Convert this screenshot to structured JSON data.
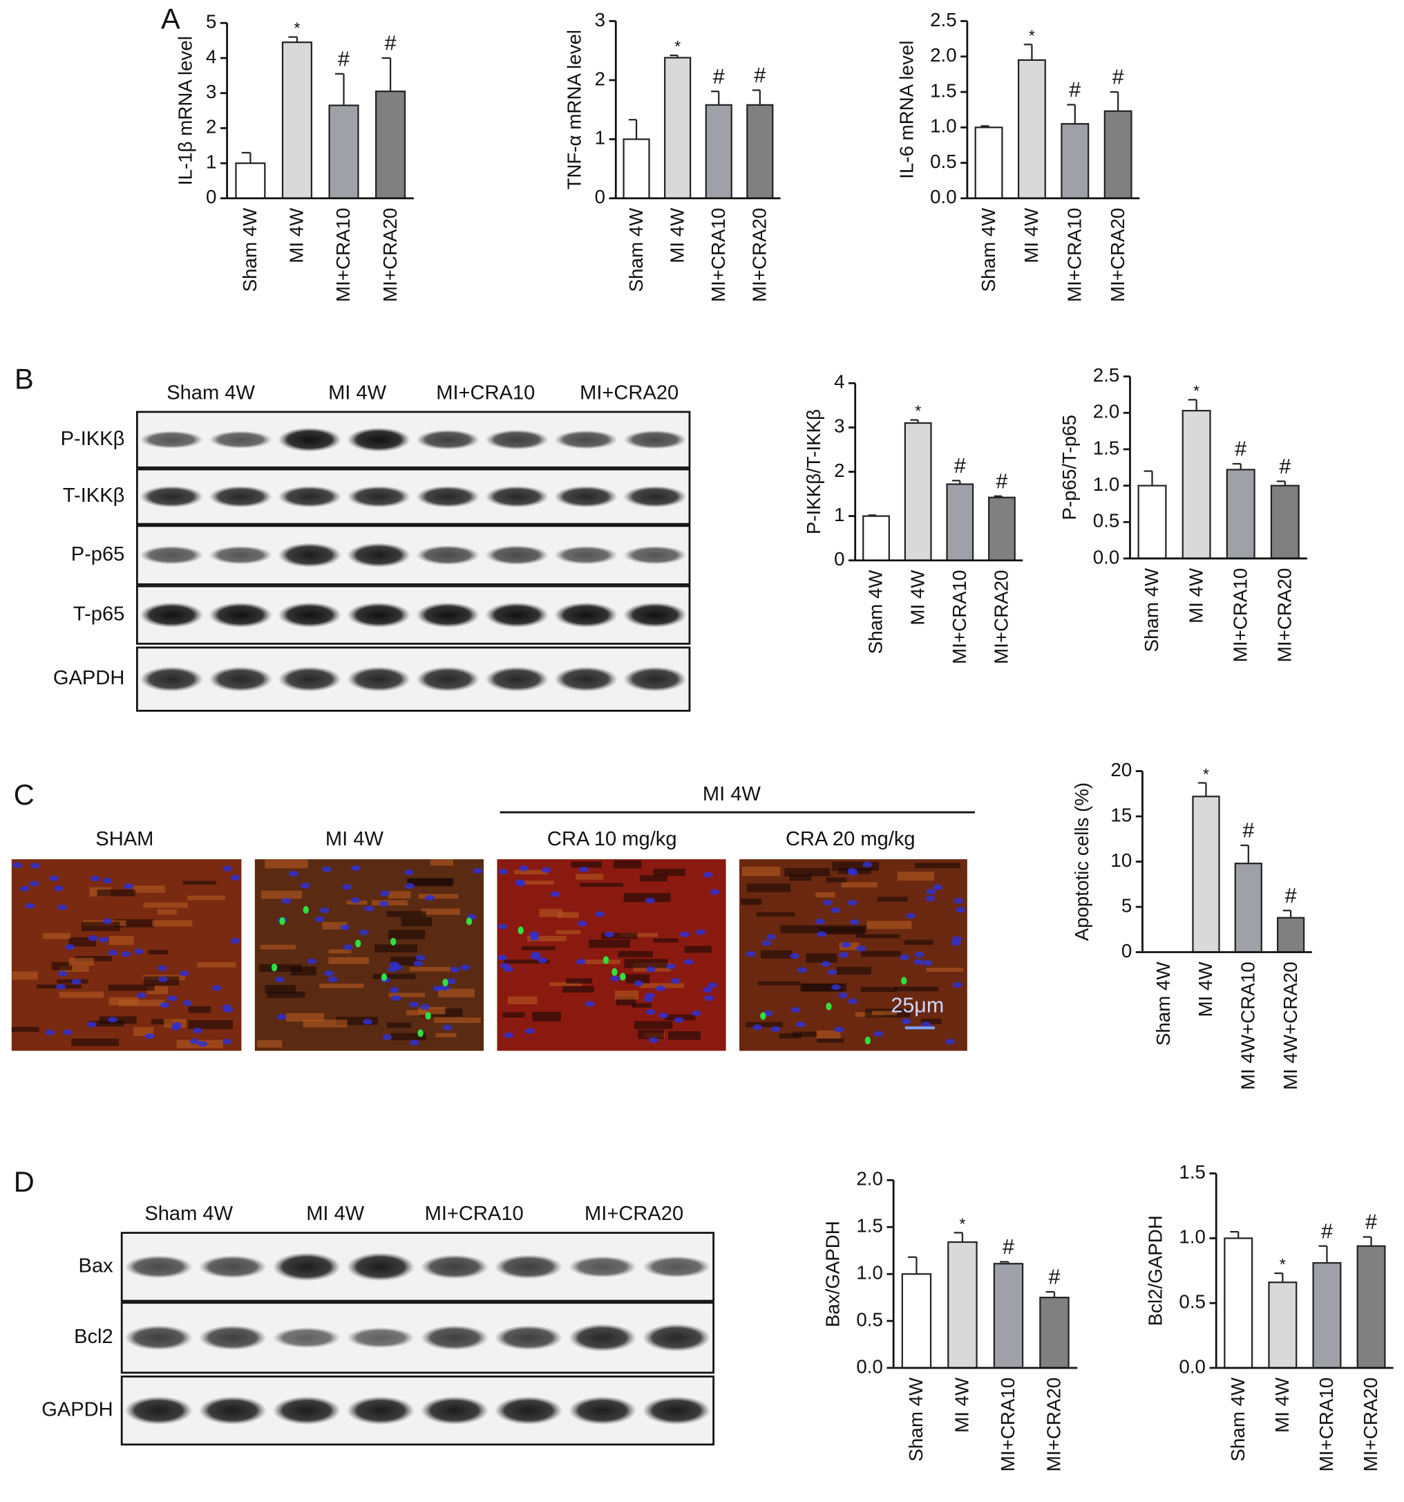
{
  "panels": [
    "A",
    "B",
    "C",
    "D"
  ],
  "blot_b": {
    "groups": [
      "Sham 4W",
      "MI 4W",
      "MI+CRA10",
      "MI+CRA20"
    ],
    "rows": [
      "P-IKKβ",
      "T-IKKβ",
      "P-p65",
      "T-p65",
      "GAPDH"
    ]
  },
  "images_c": {
    "header": "MI 4W",
    "titles": [
      "SHAM",
      "MI 4W",
      "CRA 10 mg/kg",
      "CRA 20 mg/kg"
    ],
    "scale": "25μm"
  },
  "blot_d": {
    "groups": [
      "Sham 4W",
      "MI 4W",
      "MI+CRA10",
      "MI+CRA20"
    ],
    "rows": [
      "Bax",
      "Bcl2",
      "GAPDH"
    ]
  },
  "chart_data": [
    {
      "type": "bar",
      "ylabel": "IL-1β mRNA level",
      "categories": [
        "Sham 4W",
        "MI 4W",
        "MI+CRA10",
        "MI+CRA20"
      ],
      "values": [
        1.0,
        4.45,
        2.65,
        3.05
      ],
      "errors": [
        0.3,
        0.15,
        0.9,
        0.95
      ],
      "colors": [
        "#ffffff",
        "#d9d9d9",
        "#a0a0a8",
        "#808080"
      ],
      "annotations": [
        null,
        "*",
        "#",
        "#"
      ],
      "ylim": [
        0,
        5
      ],
      "yticks": [
        0,
        1,
        2,
        3,
        4,
        5
      ]
    },
    {
      "type": "bar",
      "ylabel": "TNF-α mRNA level",
      "categories": [
        "Sham 4W",
        "MI 4W",
        "MI+CRA10",
        "MI+CRA20"
      ],
      "values": [
        1.0,
        2.38,
        1.58,
        1.58
      ],
      "errors": [
        0.33,
        0.04,
        0.23,
        0.25
      ],
      "colors": [
        "#ffffff",
        "#d9d9d9",
        "#a0a0a8",
        "#808080"
      ],
      "annotations": [
        null,
        "*",
        "#",
        "#"
      ],
      "ylim": [
        0,
        3
      ],
      "yticks": [
        0,
        1,
        2,
        3
      ]
    },
    {
      "type": "bar",
      "ylabel": "IL-6 mRNA level",
      "categories": [
        "Sham 4W",
        "MI 4W",
        "MI+CRA10",
        "MI+CRA20"
      ],
      "values": [
        1.0,
        1.95,
        1.05,
        1.23
      ],
      "errors": [
        0.02,
        0.22,
        0.27,
        0.27
      ],
      "colors": [
        "#ffffff",
        "#d9d9d9",
        "#a0a0a8",
        "#808080"
      ],
      "annotations": [
        null,
        "*",
        "#",
        "#"
      ],
      "ylim": [
        0,
        2.5
      ],
      "yticks": [
        {
          "value": 0,
          "label": "0.0"
        },
        0.5,
        {
          "value": 1,
          "label": "1.0"
        },
        1.5,
        {
          "value": 2,
          "label": "2.0"
        },
        2.5
      ]
    },
    {
      "type": "bar",
      "ylabel": "P-IKKβ/T-IKKβ",
      "categories": [
        "Sham 4W",
        "MI 4W",
        "MI+CRA10",
        "MI+CRA20"
      ],
      "values": [
        1.0,
        3.1,
        1.72,
        1.42
      ],
      "errors": [
        0.02,
        0.07,
        0.08,
        0.03
      ],
      "colors": [
        "#ffffff",
        "#d9d9d9",
        "#a0a0a8",
        "#808080"
      ],
      "annotations": [
        null,
        "*",
        "#",
        "#"
      ],
      "ylim": [
        0,
        4
      ],
      "yticks": [
        0,
        1,
        2,
        3,
        4
      ]
    },
    {
      "type": "bar",
      "ylabel": "P-p65/T-p65",
      "categories": [
        "Sham 4W",
        "MI 4W",
        "MI+CRA10",
        "MI+CRA20"
      ],
      "values": [
        1.0,
        2.03,
        1.22,
        1.0
      ],
      "errors": [
        0.2,
        0.15,
        0.08,
        0.06
      ],
      "colors": [
        "#ffffff",
        "#d9d9d9",
        "#a0a0a8",
        "#808080"
      ],
      "annotations": [
        null,
        "*",
        "#",
        "#"
      ],
      "ylim": [
        0,
        2.5
      ],
      "yticks": [
        {
          "value": 0,
          "label": "0.0"
        },
        0.5,
        {
          "value": 1,
          "label": "1.0"
        },
        1.5,
        {
          "value": 2,
          "label": "2.0"
        },
        2.5
      ]
    },
    {
      "type": "bar",
      "ylabel": "Apoptotic cells (%)",
      "categories": [
        "Sham 4W",
        "MI 4W",
        "MI 4W+CRA10",
        "MI 4W+CRA20"
      ],
      "values": [
        0,
        17.2,
        9.8,
        3.8
      ],
      "errors": [
        null,
        1.5,
        2.0,
        0.8
      ],
      "colors": [
        "#ffffff",
        "#d9d9d9",
        "#a0a0a8",
        "#808080"
      ],
      "annotations": [
        null,
        "*",
        "#",
        "#"
      ],
      "ylim": [
        0,
        20
      ],
      "yticks": [
        0,
        5,
        10,
        15,
        20
      ]
    },
    {
      "type": "bar",
      "ylabel": "Bax/GAPDH",
      "categories": [
        "Sham 4W",
        "MI 4W",
        "MI+CRA10",
        "MI+CRA20"
      ],
      "values": [
        1.0,
        1.34,
        1.11,
        0.75
      ],
      "errors": [
        0.18,
        0.1,
        0.02,
        0.06
      ],
      "colors": [
        "#ffffff",
        "#d9d9d9",
        "#a0a0a8",
        "#808080"
      ],
      "annotations": [
        null,
        "*",
        "#",
        "#"
      ],
      "ylim": [
        0,
        2
      ],
      "yticks": [
        {
          "value": 0,
          "label": "0.0"
        },
        0.5,
        {
          "value": 1,
          "label": "1.0"
        },
        1.5,
        {
          "value": 2,
          "label": "2.0"
        }
      ]
    },
    {
      "type": "bar",
      "ylabel": "Bcl2/GAPDH",
      "categories": [
        "Sham 4W",
        "MI 4W",
        "MI+CRA10",
        "MI+CRA20"
      ],
      "values": [
        1.0,
        0.66,
        0.81,
        0.94
      ],
      "errors": [
        0.05,
        0.07,
        0.13,
        0.07
      ],
      "colors": [
        "#ffffff",
        "#d9d9d9",
        "#a0a0a8",
        "#808080"
      ],
      "annotations": [
        null,
        "*",
        "#",
        "#"
      ],
      "ylim": [
        0,
        1.5
      ],
      "yticks": [
        {
          "value": 0,
          "label": "0.0"
        },
        0.5,
        {
          "value": 1,
          "label": "1.0"
        },
        1.5
      ]
    }
  ]
}
